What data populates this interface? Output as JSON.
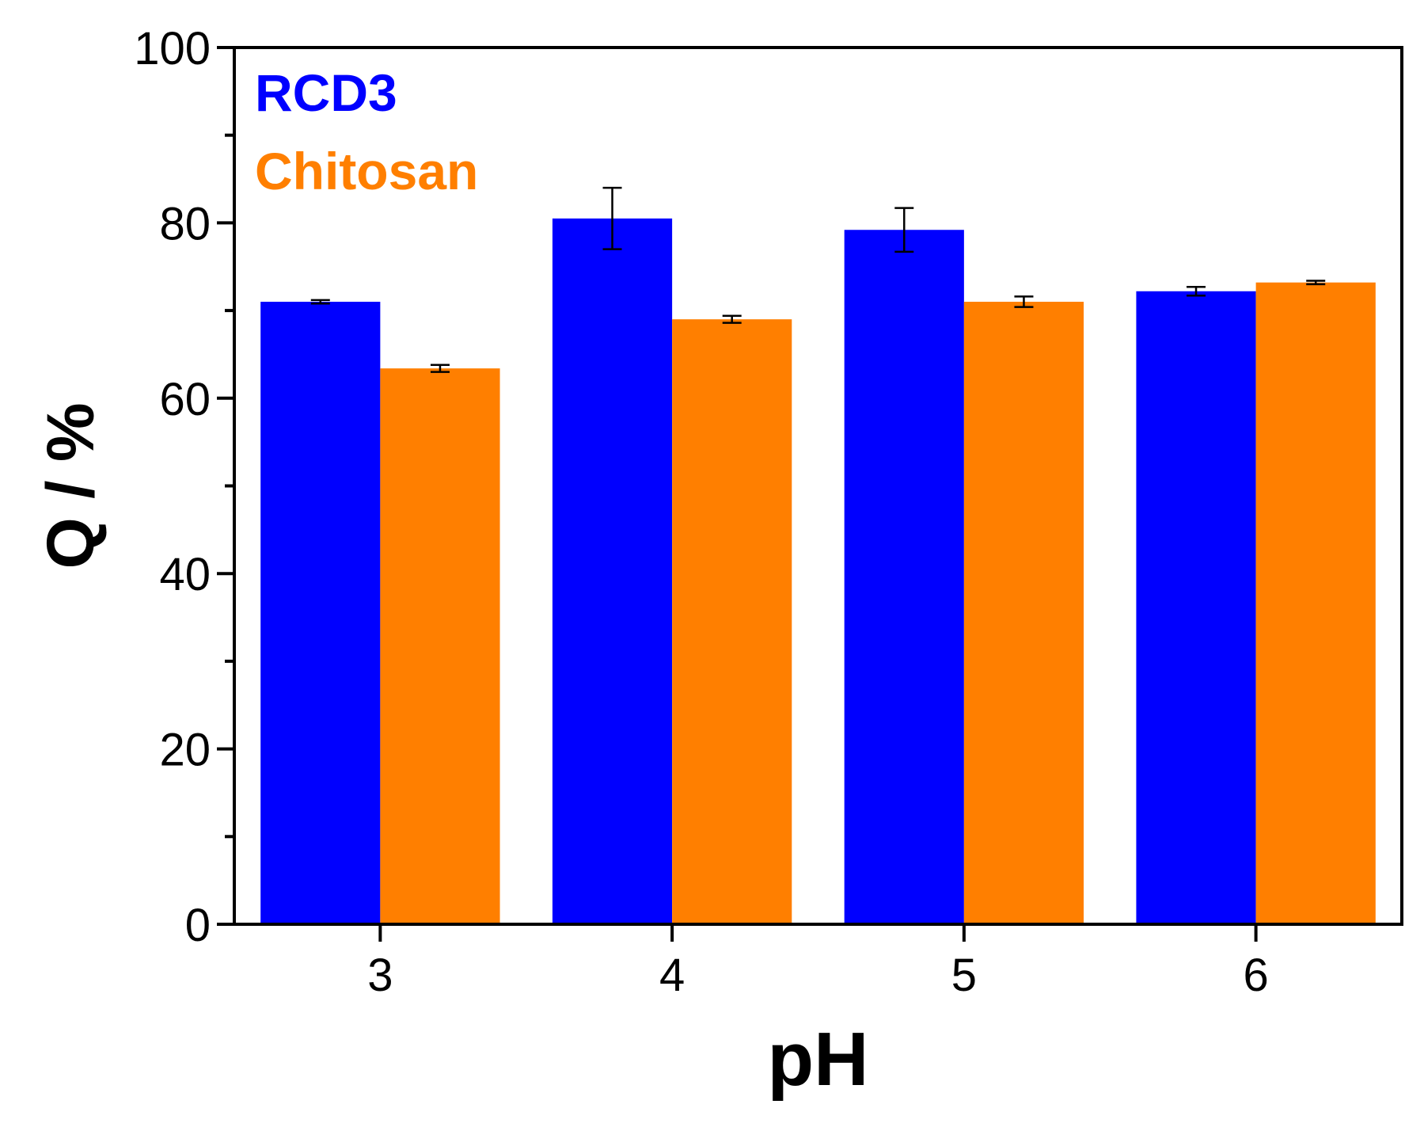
{
  "chart_data": {
    "type": "bar",
    "title": "",
    "xlabel": "pH",
    "ylabel": "Q / %",
    "categories": [
      "3",
      "4",
      "5",
      "6"
    ],
    "ylim": [
      0,
      100
    ],
    "yticks": [
      "0",
      "20",
      "40",
      "60",
      "80",
      "100"
    ],
    "yminor_step": 10,
    "grid": false,
    "legend_position": "top-left",
    "series": [
      {
        "name": "RCD3",
        "color": "#0000ff",
        "values": [
          71.0,
          80.5,
          79.2,
          72.2
        ],
        "errors": [
          0.2,
          3.5,
          2.5,
          0.5
        ]
      },
      {
        "name": "Chitosan",
        "color": "#ff7f00",
        "values": [
          63.4,
          69.0,
          71.0,
          73.2
        ],
        "errors": [
          0.4,
          0.4,
          0.6,
          0.2
        ]
      }
    ]
  }
}
